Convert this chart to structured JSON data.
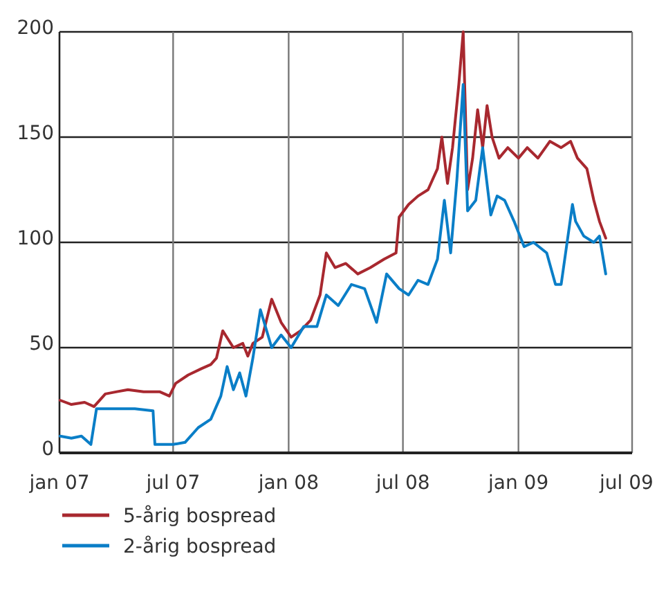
{
  "chart_data": {
    "type": "line",
    "xlim": [
      "2007-01-01",
      "2009-07-01"
    ],
    "ylim": [
      0,
      200
    ],
    "xticks": [
      {
        "value": "2007-01-01",
        "label": "jan 07"
      },
      {
        "value": "2007-07-01",
        "label": "jul 07"
      },
      {
        "value": "2008-01-01",
        "label": "jan 08"
      },
      {
        "value": "2008-07-01",
        "label": "jul 08"
      },
      {
        "value": "2009-01-01",
        "label": "jan 09"
      },
      {
        "value": "2009-07-01",
        "label": "jul 09"
      }
    ],
    "yticks": [
      0,
      50,
      100,
      150,
      200
    ],
    "grid": true,
    "legend": "bottom",
    "line_style": "solid",
    "series": [
      {
        "name": "5-årig bospread",
        "color": "#a8282f",
        "x": [
          "2007-01-02",
          "2007-01-20",
          "2007-02-10",
          "2007-02-25",
          "2007-03-15",
          "2007-04-01",
          "2007-04-20",
          "2007-05-15",
          "2007-06-10",
          "2007-06-25",
          "2007-07-05",
          "2007-07-25",
          "2007-08-15",
          "2007-08-30",
          "2007-09-08",
          "2007-09-18",
          "2007-10-05",
          "2007-10-20",
          "2007-10-28",
          "2007-11-05",
          "2007-11-20",
          "2007-12-05",
          "2007-12-20",
          "2008-01-05",
          "2008-01-20",
          "2008-02-05",
          "2008-02-20",
          "2008-03-01",
          "2008-03-15",
          "2008-04-01",
          "2008-04-20",
          "2008-05-10",
          "2008-06-01",
          "2008-06-20",
          "2008-06-25",
          "2008-07-10",
          "2008-07-25",
          "2008-08-10",
          "2008-08-25",
          "2008-09-01",
          "2008-09-10",
          "2008-09-18",
          "2008-09-28",
          "2008-10-05",
          "2008-10-12",
          "2008-10-20",
          "2008-10-28",
          "2008-11-05",
          "2008-11-12",
          "2008-11-20",
          "2008-12-01",
          "2008-12-15",
          "2009-01-01",
          "2009-01-15",
          "2009-02-01",
          "2009-02-20",
          "2009-03-10",
          "2009-03-25",
          "2009-04-05",
          "2009-04-20",
          "2009-05-01",
          "2009-05-10",
          "2009-05-20"
        ],
        "values": [
          25,
          23,
          24,
          22,
          28,
          29,
          30,
          29,
          29,
          27,
          33,
          37,
          40,
          42,
          45,
          58,
          50,
          52,
          46,
          52,
          55,
          73,
          62,
          55,
          58,
          63,
          75,
          95,
          88,
          90,
          85,
          88,
          92,
          95,
          112,
          118,
          122,
          125,
          135,
          150,
          128,
          145,
          175,
          200,
          125,
          140,
          163,
          145,
          165,
          150,
          140,
          145,
          140,
          145,
          140,
          148,
          145,
          148,
          140,
          135,
          120,
          110,
          102
        ]
      },
      {
        "name": "2-årig bospread",
        "color": "#0a7ec7",
        "x": [
          "2007-01-02",
          "2007-01-20",
          "2007-02-05",
          "2007-02-20",
          "2007-03-01",
          "2007-03-05",
          "2007-04-01",
          "2007-05-01",
          "2007-05-30",
          "2007-06-02",
          "2007-07-01",
          "2007-07-20",
          "2007-08-10",
          "2007-08-30",
          "2007-09-15",
          "2007-09-25",
          "2007-10-05",
          "2007-10-15",
          "2007-10-25",
          "2007-11-05",
          "2007-11-17",
          "2007-12-05",
          "2007-12-20",
          "2008-01-05",
          "2008-01-25",
          "2008-02-15",
          "2008-03-01",
          "2008-03-20",
          "2008-04-10",
          "2008-05-01",
          "2008-05-20",
          "2008-06-05",
          "2008-06-25",
          "2008-07-10",
          "2008-07-25",
          "2008-08-10",
          "2008-08-25",
          "2008-09-05",
          "2008-09-15",
          "2008-09-25",
          "2008-10-05",
          "2008-10-12",
          "2008-10-25",
          "2008-11-05",
          "2008-11-18",
          "2008-11-28",
          "2008-12-10",
          "2008-12-25",
          "2009-01-10",
          "2009-01-25",
          "2009-02-15",
          "2009-03-01",
          "2009-03-10",
          "2009-03-28",
          "2009-04-02",
          "2009-04-15",
          "2009-05-01",
          "2009-05-10",
          "2009-05-20"
        ],
        "values": [
          8,
          7,
          8,
          4,
          21,
          21,
          21,
          21,
          20,
          4,
          4,
          5,
          12,
          16,
          27,
          41,
          30,
          38,
          27,
          45,
          68,
          50,
          56,
          50,
          60,
          60,
          75,
          70,
          80,
          78,
          62,
          85,
          78,
          75,
          82,
          80,
          92,
          120,
          95,
          130,
          175,
          115,
          120,
          145,
          113,
          122,
          120,
          110,
          98,
          100,
          95,
          80,
          80,
          118,
          110,
          103,
          100,
          103,
          85
        ]
      }
    ]
  }
}
